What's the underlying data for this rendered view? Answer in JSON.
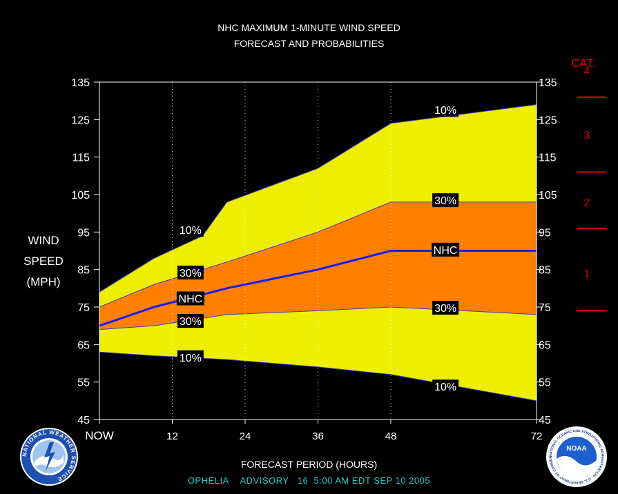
{
  "header": {
    "title_line1": "NHC MAXIMUM 1-MINUTE WIND SPEED",
    "title_line2": "FORECAST AND PROBABILITIES"
  },
  "axis": {
    "ylabel_lines": [
      "WIND",
      "SPEED",
      "(MPH)"
    ],
    "xlabel": "FORECAST PERIOD (HOURS)",
    "cat_title": "CAT."
  },
  "footer": {
    "storm": "OPHELIA",
    "advisory_label": "ADVISORY",
    "advisory_number": "16",
    "issued": "5:00 AM EDT SEP 10 2005"
  },
  "logos": {
    "left": "NWS",
    "left_ring": "NATIONAL WEATHER SERVICE",
    "right": "NOAA",
    "right_ring": "NATIONAL OCEANIC AND ATMOSPHERIC ADMINISTRATION · U.S. DEPARTMENT OF COMMERCE"
  },
  "chart_data": {
    "type": "area",
    "x_ticks": [
      {
        "x": 0,
        "label": "NOW"
      },
      {
        "x": 12,
        "label": "12"
      },
      {
        "x": 24,
        "label": "24"
      },
      {
        "x": 36,
        "label": "36"
      },
      {
        "x": 48,
        "label": "48"
      },
      {
        "x": 72,
        "label": "72"
      }
    ],
    "xlim": [
      0,
      72
    ],
    "ylim": [
      45,
      135
    ],
    "y_ticks": [
      45,
      55,
      65,
      75,
      85,
      95,
      105,
      115,
      125,
      135
    ],
    "gridlines_x": [
      12,
      24,
      36,
      48
    ],
    "bands": {
      "upper_10": {
        "x": [
          0,
          9,
          17,
          21,
          36,
          48,
          72
        ],
        "y": [
          79,
          88,
          94,
          103,
          112,
          124,
          129
        ]
      },
      "upper_30": {
        "x": [
          0,
          9,
          21,
          36,
          48,
          72
        ],
        "y": [
          75,
          81,
          87,
          95,
          103,
          103
        ]
      },
      "lower_30": {
        "x": [
          0,
          9,
          17,
          21,
          36,
          48,
          72
        ],
        "y": [
          69,
          70,
          72,
          73,
          74,
          75,
          73
        ]
      },
      "lower_10": {
        "x": [
          0,
          9,
          21,
          36,
          48,
          72
        ],
        "y": [
          63,
          62,
          61,
          59,
          57,
          50
        ]
      }
    },
    "nhc": {
      "x": [
        0,
        9,
        21,
        36,
        48,
        72
      ],
      "y": [
        70,
        75,
        80,
        85,
        90,
        90
      ]
    },
    "band_labels": [
      {
        "text": "10%",
        "x": 15,
        "y": 95.6
      },
      {
        "text": "30%",
        "x": 15,
        "y": 84.2
      },
      {
        "text": "NHC",
        "x": 15,
        "y": 77.3
      },
      {
        "text": "30%",
        "x": 15,
        "y": 71.3
      },
      {
        "text": "10%",
        "x": 15,
        "y": 61.6
      },
      {
        "text": "10%",
        "x": 57,
        "y": 127.6
      },
      {
        "text": "30%",
        "x": 57,
        "y": 103.5
      },
      {
        "text": "NHC",
        "x": 57,
        "y": 90.3
      },
      {
        "text": "30%",
        "x": 57,
        "y": 74.8
      },
      {
        "text": "10%",
        "x": 57,
        "y": 53.8
      }
    ],
    "categories": [
      {
        "label": "1",
        "y": 84,
        "lower": 74,
        "upper": 96
      },
      {
        "label": "2",
        "y": 103,
        "lower": 96,
        "upper": 111
      },
      {
        "label": "3",
        "y": 121,
        "lower": 111,
        "upper": 131
      },
      {
        "label": "4",
        "y": 138,
        "lower": 131
      }
    ],
    "colors": {
      "band10": "#eeee00",
      "band30": "#ff8000",
      "nhc": "#1a1aff",
      "category": "#e00000",
      "frame": "#ffffff"
    }
  }
}
